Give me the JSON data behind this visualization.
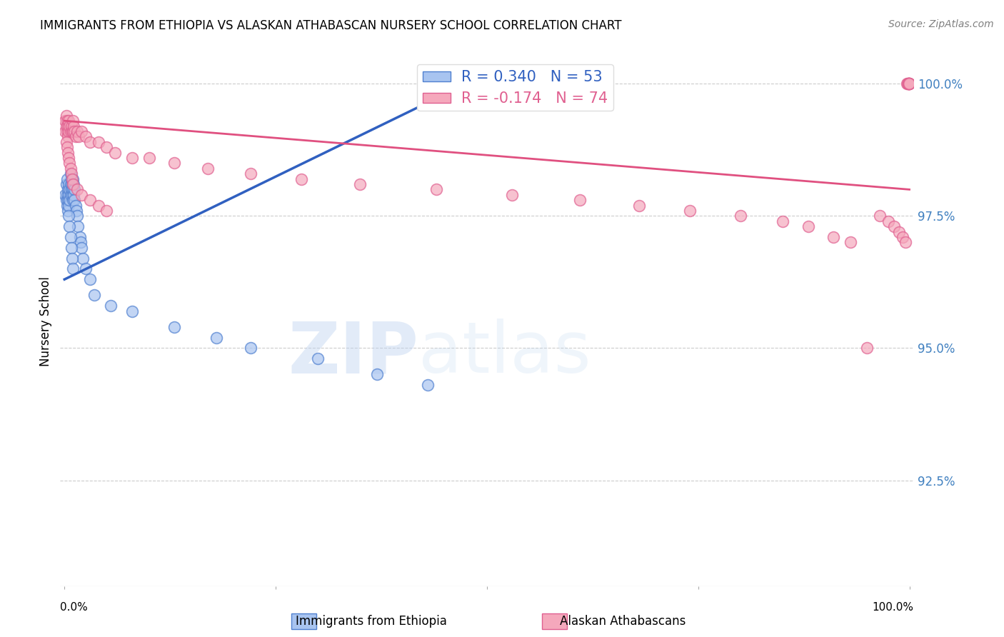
{
  "title": "IMMIGRANTS FROM ETHIOPIA VS ALASKAN ATHABASCAN NURSERY SCHOOL CORRELATION CHART",
  "source": "Source: ZipAtlas.com",
  "ylabel": "Nursery School",
  "ytick_labels": [
    "100.0%",
    "97.5%",
    "95.0%",
    "92.5%"
  ],
  "ytick_values": [
    1.0,
    0.975,
    0.95,
    0.925
  ],
  "xlim": [
    0.0,
    1.0
  ],
  "ylim": [
    0.905,
    1.005
  ],
  "legend_blue_r": "R = 0.340",
  "legend_blue_n": "N = 53",
  "legend_pink_r": "R = -0.174",
  "legend_pink_n": "N = 74",
  "blue_color": "#A8C4F0",
  "pink_color": "#F5A8BC",
  "blue_edge_color": "#5080D0",
  "pink_edge_color": "#E06090",
  "blue_line_color": "#3060C0",
  "pink_line_color": "#E05080",
  "blue_x": [
    0.001,
    0.002,
    0.002,
    0.003,
    0.003,
    0.003,
    0.004,
    0.004,
    0.004,
    0.005,
    0.005,
    0.005,
    0.006,
    0.006,
    0.007,
    0.007,
    0.007,
    0.008,
    0.008,
    0.009,
    0.009,
    0.01,
    0.01,
    0.01,
    0.011,
    0.011,
    0.012,
    0.012,
    0.013,
    0.014,
    0.015,
    0.016,
    0.018,
    0.019,
    0.02,
    0.022,
    0.025,
    0.03,
    0.035,
    0.055,
    0.08,
    0.13,
    0.18,
    0.22,
    0.3,
    0.37,
    0.43,
    0.005,
    0.006,
    0.007,
    0.008,
    0.009,
    0.01
  ],
  "blue_y": [
    0.979,
    0.981,
    0.978,
    0.982,
    0.979,
    0.977,
    0.98,
    0.978,
    0.976,
    0.981,
    0.979,
    0.977,
    0.98,
    0.978,
    0.983,
    0.981,
    0.979,
    0.982,
    0.98,
    0.981,
    0.979,
    0.982,
    0.98,
    0.978,
    0.981,
    0.979,
    0.98,
    0.978,
    0.977,
    0.976,
    0.975,
    0.973,
    0.971,
    0.97,
    0.969,
    0.967,
    0.965,
    0.963,
    0.96,
    0.958,
    0.957,
    0.954,
    0.952,
    0.95,
    0.948,
    0.945,
    0.943,
    0.975,
    0.973,
    0.971,
    0.969,
    0.967,
    0.965
  ],
  "pink_x": [
    0.001,
    0.001,
    0.002,
    0.002,
    0.003,
    0.003,
    0.004,
    0.004,
    0.005,
    0.005,
    0.006,
    0.007,
    0.008,
    0.009,
    0.01,
    0.01,
    0.011,
    0.012,
    0.013,
    0.015,
    0.017,
    0.02,
    0.025,
    0.03,
    0.04,
    0.05,
    0.06,
    0.08,
    0.1,
    0.13,
    0.17,
    0.22,
    0.28,
    0.35,
    0.44,
    0.53,
    0.61,
    0.68,
    0.74,
    0.8,
    0.85,
    0.88,
    0.91,
    0.93,
    0.95,
    0.965,
    0.975,
    0.982,
    0.988,
    0.992,
    0.995,
    0.997,
    0.998,
    0.999,
    0.9992,
    0.9994,
    0.9996,
    0.9997,
    0.9998,
    0.9999,
    0.002,
    0.003,
    0.004,
    0.005,
    0.006,
    0.007,
    0.008,
    0.009,
    0.01,
    0.015,
    0.02,
    0.03,
    0.04,
    0.05
  ],
  "pink_y": [
    0.993,
    0.991,
    0.994,
    0.992,
    0.993,
    0.991,
    0.992,
    0.99,
    0.993,
    0.991,
    0.992,
    0.991,
    0.992,
    0.991,
    0.993,
    0.991,
    0.992,
    0.991,
    0.99,
    0.991,
    0.99,
    0.991,
    0.99,
    0.989,
    0.989,
    0.988,
    0.987,
    0.986,
    0.986,
    0.985,
    0.984,
    0.983,
    0.982,
    0.981,
    0.98,
    0.979,
    0.978,
    0.977,
    0.976,
    0.975,
    0.974,
    0.973,
    0.971,
    0.97,
    0.95,
    0.975,
    0.974,
    0.973,
    0.972,
    0.971,
    0.97,
    1.0,
    1.0,
    1.0,
    1.0,
    1.0,
    1.0,
    1.0,
    1.0,
    1.0,
    0.989,
    0.988,
    0.987,
    0.986,
    0.985,
    0.984,
    0.983,
    0.982,
    0.981,
    0.98,
    0.979,
    0.978,
    0.977,
    0.976
  ],
  "blue_trendline_x": [
    0.0,
    0.45
  ],
  "blue_trendline_y": [
    0.963,
    0.998
  ],
  "pink_trendline_x": [
    0.0,
    1.0
  ],
  "pink_trendline_y": [
    0.993,
    0.98
  ]
}
